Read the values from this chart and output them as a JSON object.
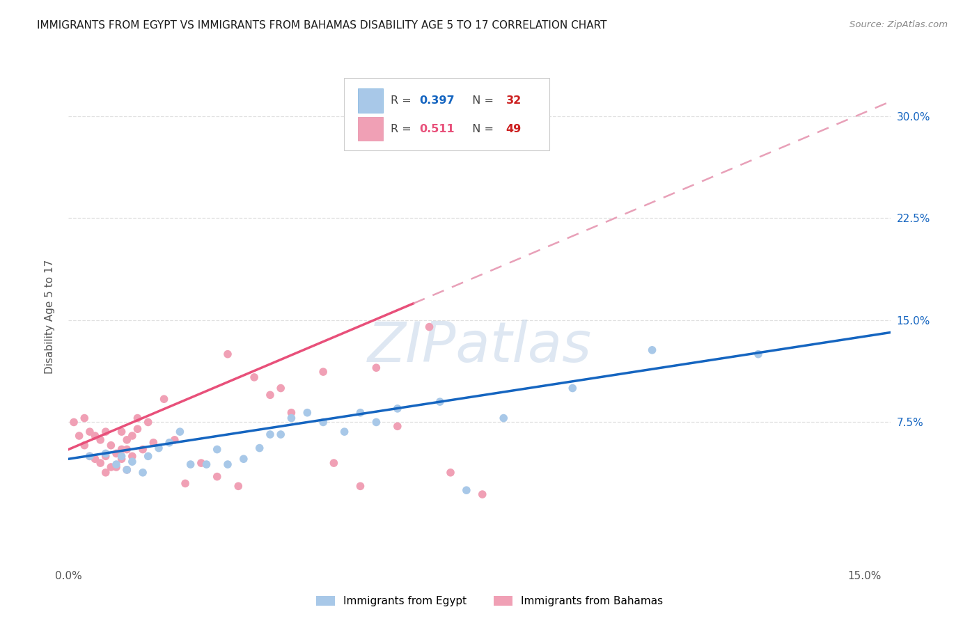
{
  "title": "IMMIGRANTS FROM EGYPT VS IMMIGRANTS FROM BAHAMAS DISABILITY AGE 5 TO 17 CORRELATION CHART",
  "source": "Source: ZipAtlas.com",
  "ylabel": "Disability Age 5 to 17",
  "xlim": [
    0.0,
    0.155
  ],
  "ylim": [
    -0.03,
    0.335
  ],
  "ytick_positions": [
    0.075,
    0.15,
    0.225,
    0.3
  ],
  "ytick_right_labels": [
    "7.5%",
    "15.0%",
    "22.5%",
    "30.0%"
  ],
  "xtick_positions": [
    0.0,
    0.15
  ],
  "xtick_labels": [
    "0.0%",
    "15.0%"
  ],
  "legend1_R": "0.397",
  "legend1_N": "32",
  "legend2_R": "0.511",
  "legend2_N": "49",
  "legend1_label": "Immigrants from Egypt",
  "legend2_label": "Immigrants from Bahamas",
  "egypt_x": [
    0.004,
    0.007,
    0.009,
    0.01,
    0.011,
    0.012,
    0.014,
    0.015,
    0.017,
    0.019,
    0.021,
    0.023,
    0.026,
    0.028,
    0.03,
    0.033,
    0.036,
    0.038,
    0.04,
    0.042,
    0.045,
    0.048,
    0.052,
    0.055,
    0.058,
    0.062,
    0.07,
    0.075,
    0.082,
    0.095,
    0.11,
    0.13
  ],
  "egypt_y": [
    0.05,
    0.052,
    0.044,
    0.05,
    0.04,
    0.046,
    0.038,
    0.05,
    0.056,
    0.06,
    0.068,
    0.044,
    0.044,
    0.055,
    0.044,
    0.048,
    0.056,
    0.066,
    0.066,
    0.078,
    0.082,
    0.075,
    0.068,
    0.082,
    0.075,
    0.085,
    0.09,
    0.025,
    0.078,
    0.1,
    0.128,
    0.125
  ],
  "bahamas_x": [
    0.001,
    0.002,
    0.003,
    0.003,
    0.004,
    0.004,
    0.005,
    0.005,
    0.006,
    0.006,
    0.007,
    0.007,
    0.007,
    0.008,
    0.008,
    0.009,
    0.009,
    0.01,
    0.01,
    0.01,
    0.011,
    0.011,
    0.011,
    0.012,
    0.012,
    0.013,
    0.013,
    0.014,
    0.015,
    0.016,
    0.018,
    0.02,
    0.022,
    0.025,
    0.028,
    0.03,
    0.032,
    0.035,
    0.038,
    0.04,
    0.042,
    0.048,
    0.05,
    0.055,
    0.058,
    0.062,
    0.068,
    0.072,
    0.078
  ],
  "bahamas_y": [
    0.075,
    0.065,
    0.078,
    0.058,
    0.05,
    0.068,
    0.048,
    0.065,
    0.045,
    0.062,
    0.038,
    0.05,
    0.068,
    0.042,
    0.058,
    0.052,
    0.042,
    0.055,
    0.048,
    0.068,
    0.062,
    0.055,
    0.04,
    0.065,
    0.05,
    0.07,
    0.078,
    0.055,
    0.075,
    0.06,
    0.092,
    0.062,
    0.03,
    0.045,
    0.035,
    0.125,
    0.028,
    0.108,
    0.095,
    0.1,
    0.082,
    0.112,
    0.045,
    0.028,
    0.115,
    0.072,
    0.145,
    0.038,
    0.022
  ],
  "egypt_scatter_color": "#a8c8e8",
  "bahamas_scatter_color": "#f0a0b5",
  "egypt_line_color": "#1565c0",
  "bahamas_line_solid_color": "#e8507a",
  "bahamas_line_dash_color": "#e8a0b8",
  "watermark_color": "#c8d8ea",
  "background_color": "#ffffff",
  "grid_color": "#e0e0e0",
  "title_color": "#1a1a1a",
  "right_axis_color": "#1565c0",
  "r_color_egypt": "#1565c0",
  "r_color_bahamas": "#e8507a",
  "n_color": "#cc2020",
  "egypt_reg_intercept": 0.048,
  "egypt_reg_slope": 0.6,
  "bahamas_reg_intercept": 0.055,
  "bahamas_reg_slope": 1.65
}
